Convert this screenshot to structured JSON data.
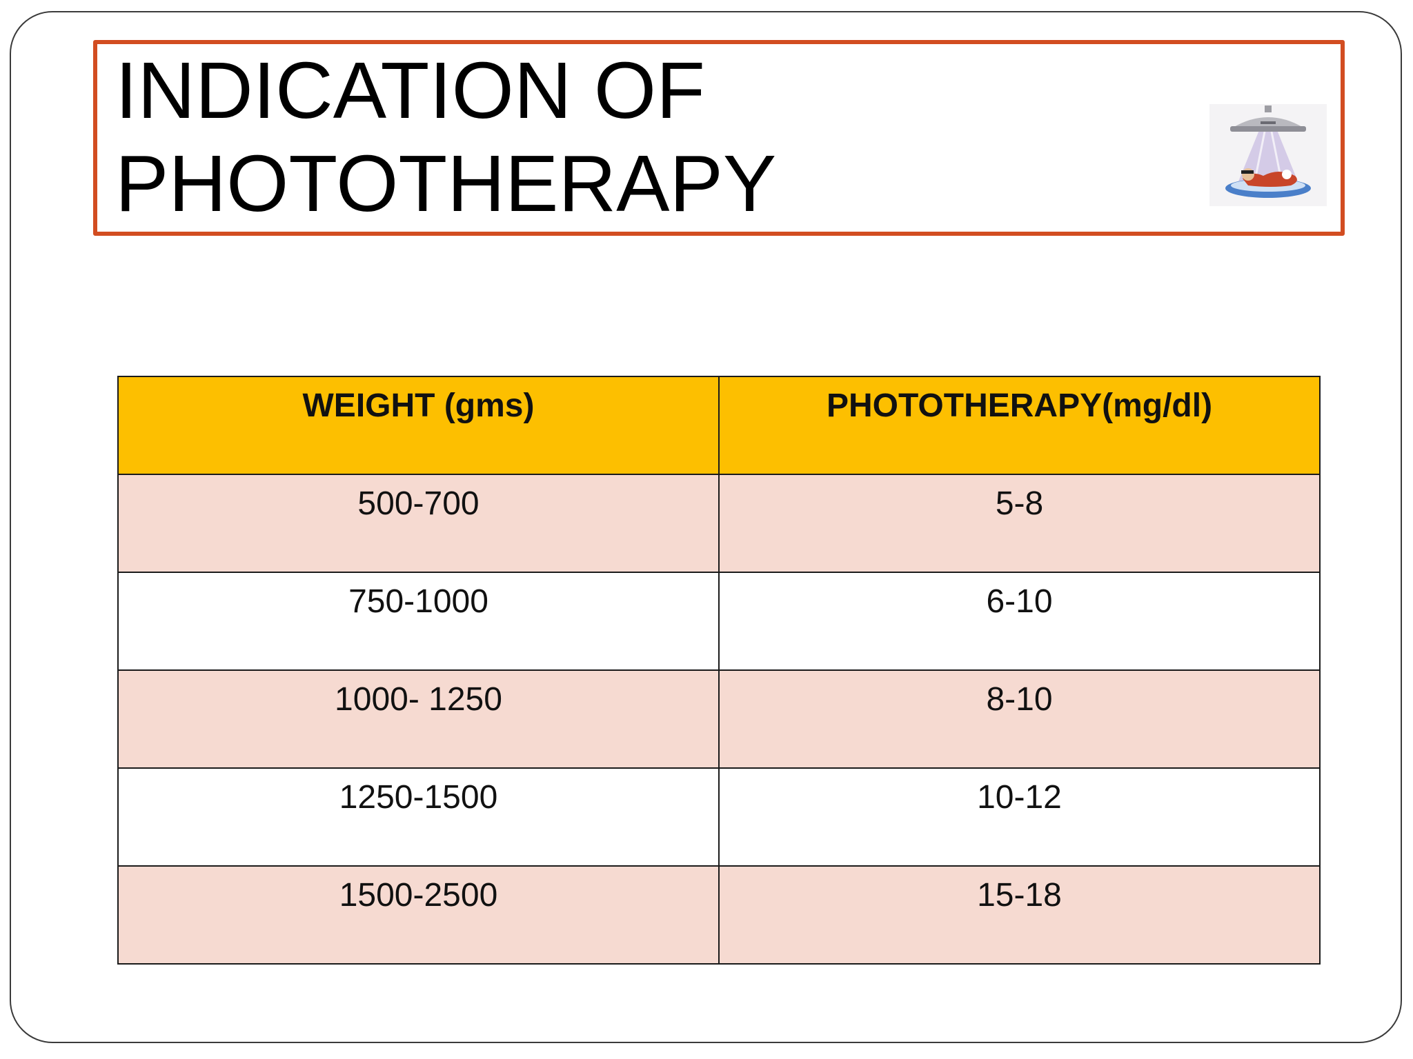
{
  "title": {
    "line1": "INDICATION OF",
    "line2": "PHOTOTHERAPY"
  },
  "illustration": {
    "icon": "infant-phototherapy-lamp-icon",
    "colors": {
      "lamp": "#b8b8bc",
      "light": "#c8b8e0",
      "bed": "#4a7fc9",
      "blanket": "#c8452a"
    }
  },
  "table": {
    "headers": [
      "WEIGHT (gms)",
      "PHOTOTHERAPY(mg/dl)"
    ],
    "rows": [
      [
        "500-700",
        "5-8"
      ],
      [
        "750-1000",
        "6-10"
      ],
      [
        "1000- 1250",
        "8-10"
      ],
      [
        "1250-1500",
        "10-12"
      ],
      [
        "1500-2500",
        "15-18"
      ]
    ]
  },
  "colors": {
    "title_border": "#d24d21",
    "header_fill": "#fdbf00",
    "band_fill": "#f6dad1"
  }
}
